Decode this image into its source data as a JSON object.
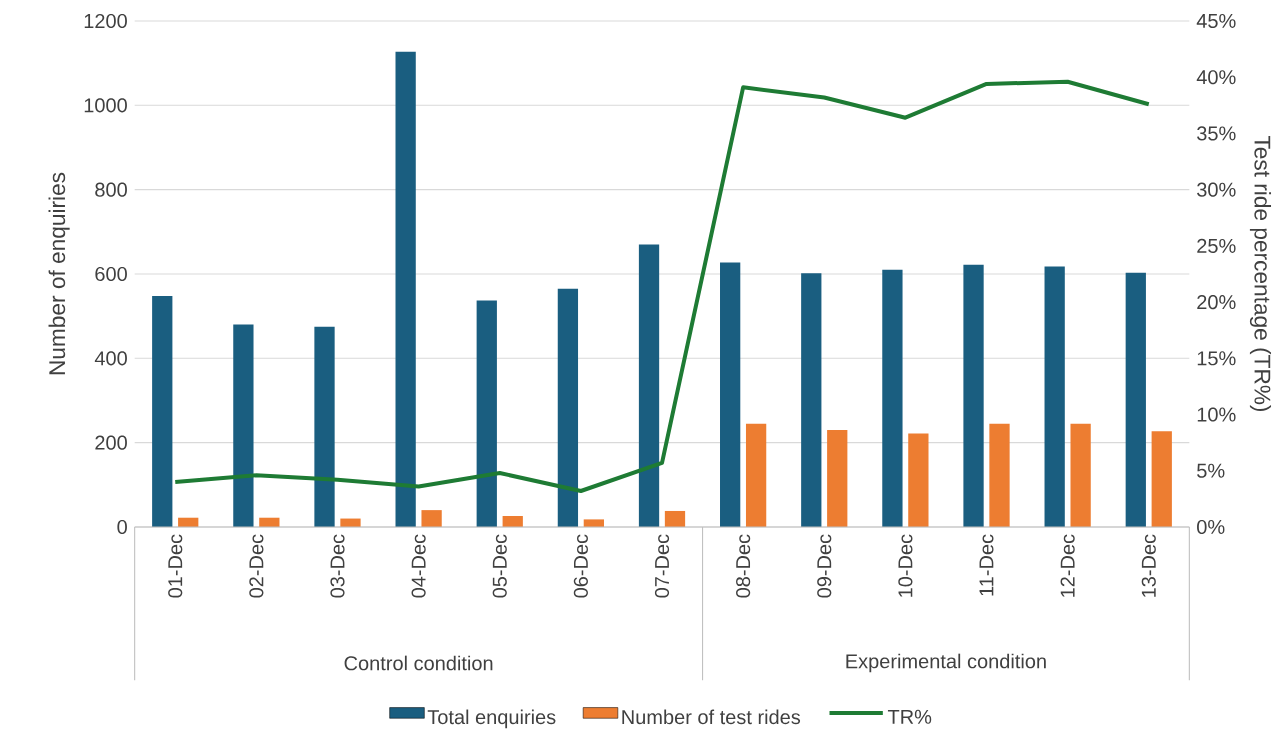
{
  "chart_data": {
    "type": "bar",
    "ylabel": "Number of enquiries",
    "y2label": "Test ride percentage (TR%)",
    "categories": [
      "01-Dec",
      "02-Dec",
      "03-Dec",
      "04-Dec",
      "05-Dec",
      "06-Dec",
      "07-Dec",
      "08-Dec",
      "09-Dec",
      "10-Dec",
      "11-Dec",
      "12-Dec",
      "13-Dec"
    ],
    "series": [
      {
        "name": "Total enquiries",
        "color": "#1a5e80",
        "values": [
          548,
          480,
          475,
          1127,
          537,
          565,
          670,
          627,
          602,
          610,
          622,
          618,
          603
        ]
      },
      {
        "name": "Number of test rides",
        "color": "#ed7d31",
        "values": [
          22,
          22,
          20,
          40,
          26,
          18,
          38,
          245,
          230,
          222,
          245,
          245,
          227
        ]
      },
      {
        "name": "TR%",
        "color": "#1e7b34",
        "type": "line",
        "axis": "y2",
        "values": [
          4.0,
          4.6,
          4.2,
          3.6,
          4.8,
          3.2,
          5.7,
          39.1,
          38.2,
          36.4,
          39.4,
          39.6,
          37.6
        ]
      }
    ],
    "ylim": [
      0,
      1200
    ],
    "yticks": [
      0,
      200,
      400,
      600,
      800,
      1000,
      1200
    ],
    "y2lim": [
      0,
      45
    ],
    "y2ticks": [
      {
        "value": 0,
        "label": "0%"
      },
      {
        "value": 5,
        "label": "5%"
      },
      {
        "value": 10,
        "label": "10%"
      },
      {
        "value": 15,
        "label": "15%"
      },
      {
        "value": 20,
        "label": "20%"
      },
      {
        "value": 25,
        "label": "25%"
      },
      {
        "value": 30,
        "label": "30%"
      },
      {
        "value": 35,
        "label": "35%"
      },
      {
        "value": 40,
        "label": "40%"
      },
      {
        "value": 45,
        "label": "45%"
      }
    ],
    "annotations": [
      "Control condition",
      "Experimental condition"
    ],
    "grid": "y",
    "legend": "bottom",
    "marker": "none"
  }
}
